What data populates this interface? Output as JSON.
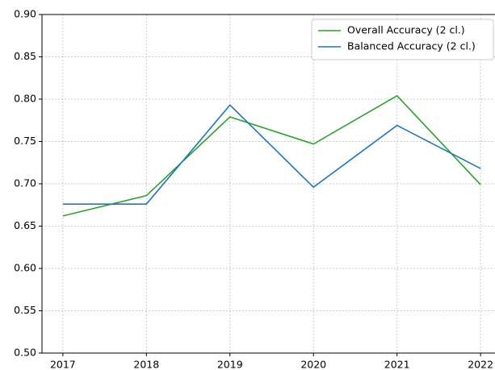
{
  "chart_data": {
    "type": "line",
    "x": [
      2017,
      2018,
      2019,
      2020,
      2021,
      2022
    ],
    "series": [
      {
        "name": "Overall Accuracy (2 cl.)",
        "color": "#2ca02c",
        "values": [
          0.662,
          0.686,
          0.779,
          0.747,
          0.804,
          0.699
        ]
      },
      {
        "name": "Balanced Accuracy (2 cl.)",
        "color": "#1f77b4",
        "values": [
          0.676,
          0.676,
          0.793,
          0.696,
          0.769,
          0.718
        ]
      }
    ],
    "xlim": [
      2016.75,
      2022.25
    ],
    "xticks": [
      2017,
      2018,
      2019,
      2020,
      2021,
      2022
    ],
    "ylim": [
      0.5,
      0.9
    ],
    "yticks": [
      {
        "value": 0.5,
        "label": "0.50"
      },
      {
        "value": 0.55,
        "label": "0.55"
      },
      {
        "value": 0.6,
        "label": "0.60"
      },
      {
        "value": 0.65,
        "label": "0.65"
      },
      {
        "value": 0.7,
        "label": "0.70"
      },
      {
        "value": 0.75,
        "label": "0.75"
      },
      {
        "value": 0.8,
        "label": "0.80"
      },
      {
        "value": 0.85,
        "label": "0.85"
      },
      {
        "value": 0.9,
        "label": "0.90"
      }
    ],
    "grid": true,
    "legend": "upper-right"
  }
}
